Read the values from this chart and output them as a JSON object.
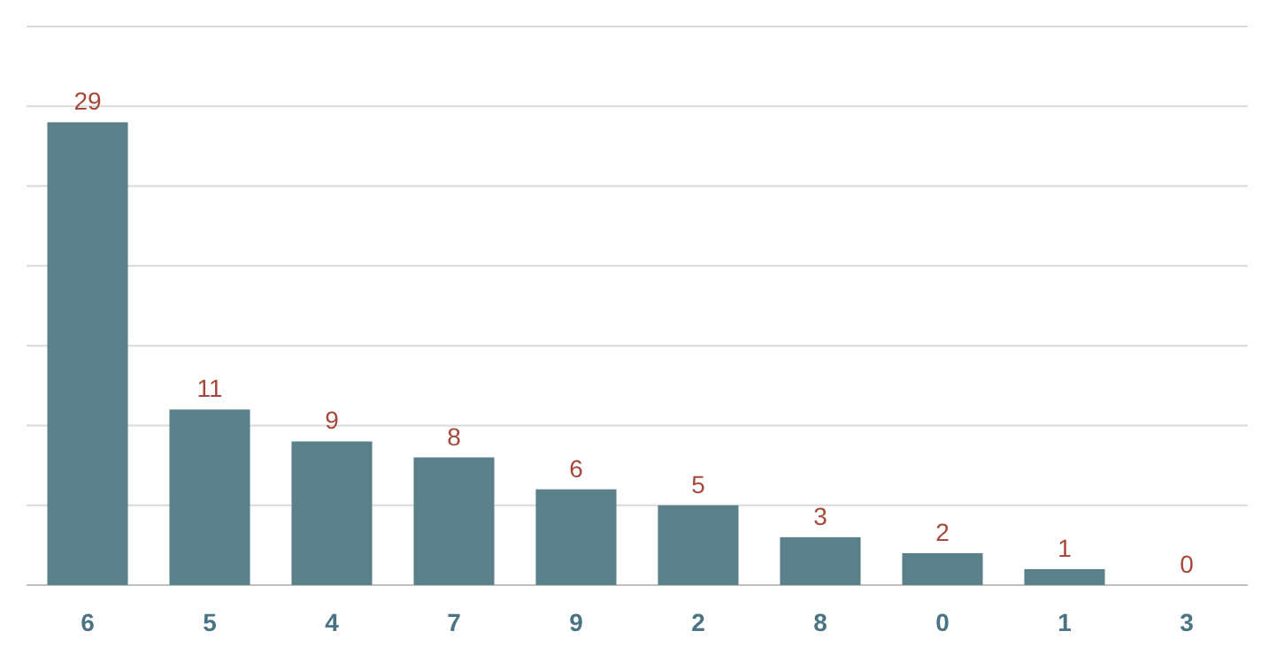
{
  "chart_data": {
    "type": "bar",
    "categories": [
      "6",
      "5",
      "4",
      "7",
      "9",
      "2",
      "8",
      "0",
      "1",
      "3"
    ],
    "values": [
      29,
      11,
      9,
      8,
      6,
      5,
      3,
      2,
      1,
      0
    ],
    "color": "#5a818a",
    "ylim": [
      0,
      35
    ],
    "yticks": [
      {
        "value": 0,
        "label": null
      },
      {
        "value": 5,
        "label": null
      },
      {
        "value": 10,
        "label": null
      },
      {
        "value": 15,
        "label": null
      },
      {
        "value": 20,
        "label": null
      },
      {
        "value": 25,
        "label": null
      },
      {
        "value": 30,
        "label": null
      },
      {
        "value": 35,
        "label": null
      }
    ],
    "grid": "y",
    "tick_labels": "x",
    "data_labels": true
  }
}
